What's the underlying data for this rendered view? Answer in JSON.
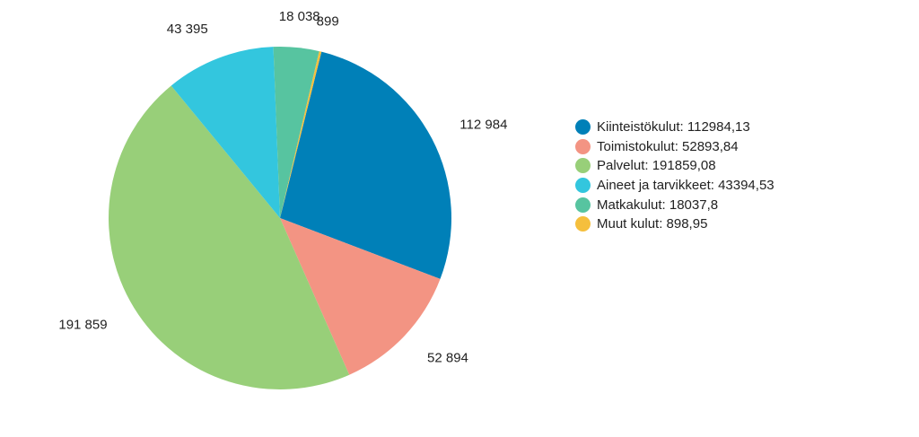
{
  "chart_data": {
    "type": "pie",
    "title": "",
    "slices": [
      {
        "name": "Kiinteistökulut",
        "value": 112984.13,
        "color": "#0080b8",
        "label": "112 984",
        "legend": "Kiinteistökulut: 112984,13"
      },
      {
        "name": "Toimistokulut",
        "value": 52893.84,
        "color": "#f39483",
        "label": "52 894",
        "legend": "Toimistokulut: 52893,84"
      },
      {
        "name": "Palvelut",
        "value": 191859.08,
        "color": "#98cf79",
        "label": "191 859",
        "legend": "Palvelut: 191859,08"
      },
      {
        "name": "Aineet ja tarvikkeet",
        "value": 43394.53,
        "color": "#33c6de",
        "label": "43 395",
        "legend": "Aineet ja tarvikkeet: 43394,53"
      },
      {
        "name": "Matkakulut",
        "value": 18037.8,
        "color": "#57c4a0",
        "label": "18 038",
        "legend": "Matkakulut: 18037,8"
      },
      {
        "name": "Muut kulut",
        "value": 898.95,
        "color": "#f5bf3d",
        "label": "899",
        "legend": "Muut kulut: 898,95"
      }
    ],
    "start_angle_deg": 14,
    "direction": "clockwise",
    "legend_position": "right"
  }
}
